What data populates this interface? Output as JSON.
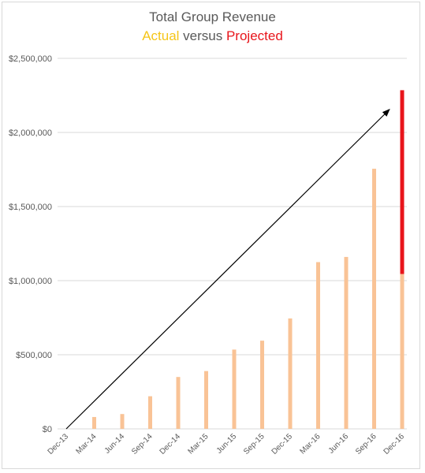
{
  "chart_data": {
    "type": "bar",
    "title": "Total Group Revenue",
    "subtitle": {
      "actual": "Actual",
      "versus": " versus ",
      "projected": "Projected"
    },
    "categories": [
      "Dec-13",
      "Mar-14",
      "Jun-14",
      "Sep-14",
      "Dec-14",
      "Mar-15",
      "Jun-15",
      "Sep-15",
      "Dec-15",
      "Mar-16",
      "Jun-16",
      "Sep-16",
      "Dec-16"
    ],
    "series": [
      {
        "values": [
          0,
          80000,
          100000,
          220000,
          350000,
          390000,
          535000,
          595000,
          745000,
          1125000,
          1160000,
          1755000,
          1045000
        ]
      },
      {
        "values": [
          null,
          null,
          null,
          null,
          null,
          null,
          null,
          null,
          null,
          null,
          null,
          null,
          1240000
        ]
      }
    ],
    "trend_arrow": {
      "from": [
        "Dec-13",
        0
      ],
      "to": [
        "Dec-16",
        2230000
      ]
    },
    "ylim": [
      0,
      2500000
    ],
    "yticks": [
      "$0",
      "$500,000",
      "$1,000,000",
      "$1,500,000",
      "$2,000,000",
      "$2,500,000"
    ],
    "ytick_values": [
      0,
      500000,
      1000000,
      1500000,
      2000000,
      2500000
    ],
    "grid": true,
    "colors": {
      "actual": "#f9c396",
      "projected": "#e8151b",
      "grid": "#d9d9d9",
      "arrow": "#000000"
    }
  }
}
